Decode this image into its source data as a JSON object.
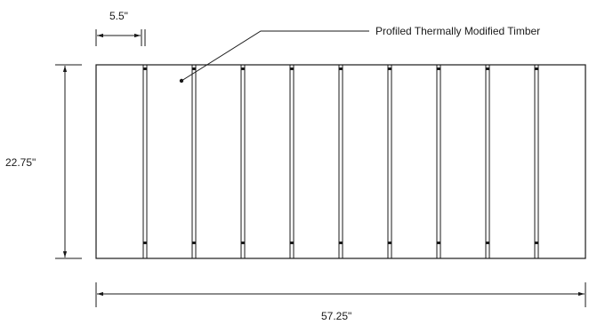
{
  "drawing": {
    "callout_label": "Profiled Thermally Modified Timber",
    "dimensions": {
      "board_width": "5.5\"",
      "panel_height": "22.75\"",
      "panel_width": "57.25\""
    },
    "board_count": 10
  }
}
